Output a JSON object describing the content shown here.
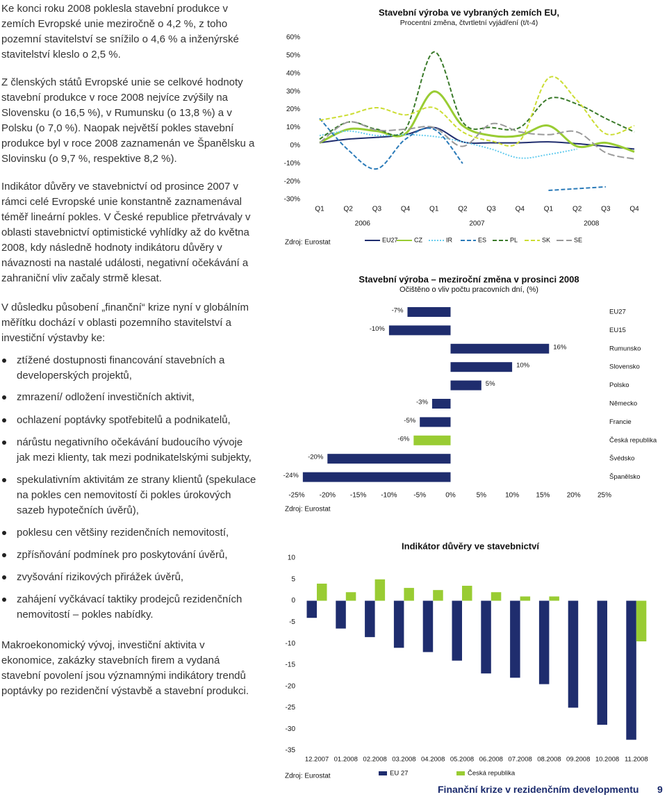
{
  "left_column": {
    "paragraphs_before": [
      "Ke konci roku 2008 poklesla stavební produkce v zemích Evropské unie meziročně o 4,2 %, z toho pozemní stavitelství se snížilo o 4,6 % a inženýrské stavitelství kleslo o 2,5 %.",
      "Z členských států Evropské unie se celkové hodnoty stavební produkce v roce 2008 nejvíce zvýšily na Slovensku (o 16,5 %), v Rumunsku (o 13,8 %) a v Polsku (o 7,0 %). Naopak největší pokles stavební produkce byl v roce 2008 zaznamenán ve Španělsku a Slovinsku (o 9,7 %, respektive 8,2 %).",
      "Indikátor důvěry ve stavebnictví od prosince 2007 v rámci celé Evropské unie konstantně zaznamenával téměř lineární pokles. V České republice přetrvávaly v oblasti stavebnictví optimistické vyhlídky až do května 2008, kdy následně hodnoty indikátoru důvěry v návaznosti na nastalé události, negativní očekávání a zahraniční vliv začaly strmě klesat.",
      "V důsledku působení „finanční“ krize nyní v globálním měřítku dochází v oblasti pozemního stavitelství a investiční výstavby ke:"
    ],
    "bullets": [
      "ztížené dostupnosti financování stavebních a developerských projektů,",
      "zmrazení/ odložení investičních aktivit,",
      "ochlazení poptávky spotřebitelů a podnikatelů,",
      "nárůstu negativního očekávání budoucího vývoje jak mezi klienty, tak mezi podnikatelskými subjekty,",
      "spekulativním aktivitám ze strany klientů (spekulace na pokles cen nemovitostí či pokles úrokových sazeb hypotečních úvěrů),",
      "poklesu cen většiny rezidenčních nemovitostí,",
      "zpřísňování podmínek pro poskytování úvěrů,",
      "zvyšování rizikových přirážek úvěrů,",
      "zahájení vyčkávací taktiky prodejců rezidenčních nemovitostí – pokles nabídky."
    ],
    "paragraphs_after": [
      "Makroekonomický vývoj, investiční aktivita v ekonomice, zakázky stavebních firem a vydaná stavební povolení jsou významnými indikátory trendů poptávky po rezidenční výstavbě a stavební produkci."
    ]
  },
  "chart_data": [
    {
      "type": "line",
      "title": "Stavební výroba ve vybraných zemích EU,",
      "subtitle": "Procentní změna, čtvrtletní vyjádření (t/t-4)",
      "source": "Zdroj: Eurostat",
      "categories": [
        "Q1",
        "Q2",
        "Q3",
        "Q4",
        "Q1",
        "Q2",
        "Q3",
        "Q4",
        "Q1",
        "Q2",
        "Q3",
        "Q4"
      ],
      "category_groups": [
        "2006",
        "2007",
        "2008"
      ],
      "ylim": [
        -30,
        60
      ],
      "yticks": [
        {
          "value": 60,
          "label": "60%"
        },
        {
          "value": 50,
          "label": "50%"
        },
        {
          "value": 40,
          "label": "40%"
        },
        {
          "value": 30,
          "label": "30%"
        },
        {
          "value": 20,
          "label": "20%"
        },
        {
          "value": 10,
          "label": "10%"
        },
        {
          "value": 0,
          "label": "0%"
        },
        {
          "value": -10,
          "label": "-10%"
        },
        {
          "value": -20,
          "label": "-20%"
        },
        {
          "value": -30,
          "label": "-30%"
        }
      ],
      "series": [
        {
          "name": "EU27",
          "color": "#1f2d6e",
          "dash": "solid",
          "values": [
            1.5,
            3.5,
            4.5,
            6,
            10,
            2,
            1.5,
            1.5,
            2,
            1,
            -0.5,
            -2
          ]
        },
        {
          "name": "CZ",
          "color": "#99cc33",
          "dash": "solid",
          "values": [
            1.5,
            9,
            8,
            6.5,
            30,
            11,
            5.5,
            5.5,
            11,
            -0.5,
            1.5,
            -3.5
          ]
        },
        {
          "name": "IR",
          "color": "#66ccee",
          "dash": "dotted",
          "values": [
            5.5,
            8,
            5.5,
            6,
            5,
            2,
            -2,
            -7,
            -5,
            -2,
            null,
            null
          ]
        },
        {
          "name": "ES",
          "color": "#2a7ab8",
          "dash": "dashed",
          "values": [
            15,
            -2.5,
            -13,
            3.5,
            9,
            -10,
            null,
            null,
            -25,
            -24,
            -23,
            null
          ]
        },
        {
          "name": "PL",
          "color": "#3a7a2a",
          "dash": "dashed",
          "values": [
            3.5,
            13,
            9,
            9,
            52,
            13,
            10,
            10,
            26,
            23,
            15,
            7.5
          ]
        },
        {
          "name": "SK",
          "color": "#ccdd33",
          "dash": "dashed",
          "values": [
            14,
            17,
            21,
            17,
            21,
            7.5,
            2.5,
            2.5,
            37.5,
            25,
            6.5,
            11
          ]
        },
        {
          "name": "SE",
          "color": "#999999",
          "dash": "longdash",
          "values": [
            1.5,
            13,
            8.5,
            9,
            10,
            -0.5,
            12,
            7.5,
            6,
            7.5,
            -4,
            -7.5
          ]
        }
      ]
    },
    {
      "type": "hbar",
      "title": "Stavební výroba – meziroční změna v prosinci 2008",
      "subtitle": "Očištěno o vliv počtu pracovních dní, (%)",
      "source": "Zdroj: Eurostat",
      "categories": [
        "EU27",
        "EU15",
        "Rumunsko",
        "Slovensko",
        "Polsko",
        "Německo",
        "Francie",
        "Česká republika",
        "Švédsko",
        "Španělsko"
      ],
      "values": [
        -7,
        -10,
        16,
        10,
        5,
        -3,
        -5,
        -6,
        -20,
        -24
      ],
      "value_labels": [
        "-7%",
        "-10%",
        "16%",
        "10%",
        "5%",
        "-3%",
        "-5%",
        "-6%",
        "-20%",
        "-24%"
      ],
      "colors": [
        "#1f2d6e",
        "#1f2d6e",
        "#1f2d6e",
        "#1f2d6e",
        "#1f2d6e",
        "#1f2d6e",
        "#1f2d6e",
        "#99cc33",
        "#1f2d6e",
        "#1f2d6e"
      ],
      "xlim": [
        -25,
        25
      ],
      "xticks": [
        {
          "value": -25,
          "label": "-25%"
        },
        {
          "value": -20,
          "label": "-20%"
        },
        {
          "value": -15,
          "label": "-15%"
        },
        {
          "value": -10,
          "label": "-10%"
        },
        {
          "value": -5,
          "label": "-5%"
        },
        {
          "value": 0,
          "label": "0%"
        },
        {
          "value": 5,
          "label": "5%"
        },
        {
          "value": 10,
          "label": "10%"
        },
        {
          "value": 15,
          "label": "15%"
        },
        {
          "value": 20,
          "label": "20%"
        },
        {
          "value": 25,
          "label": "25%"
        }
      ]
    },
    {
      "type": "bar",
      "title": "Indikátor důvěry ve stavebnictví",
      "source": "Zdroj: Eurostat",
      "categories": [
        "12.2007",
        "01.2008",
        "02.2008",
        "03.2008",
        "04.2008",
        "05.2008",
        "06.2008",
        "07.2008",
        "08.2008",
        "09.2008",
        "10.2008",
        "11.2008"
      ],
      "ylim": [
        -35,
        10
      ],
      "yticks": [
        10,
        5,
        0,
        -5,
        -10,
        -15,
        -20,
        -25,
        -30,
        -35
      ],
      "series": [
        {
          "name": "EU 27",
          "color": "#1f2d6e",
          "values": [
            -4,
            -6.5,
            -8.5,
            -11,
            -12,
            -14,
            -17,
            -18,
            -19.5,
            -25,
            -29,
            -32.5
          ]
        },
        {
          "name": "Česká republika",
          "color": "#99cc33",
          "values": [
            4,
            2,
            5,
            3,
            2.5,
            3.5,
            2,
            1,
            1,
            0,
            0,
            -9.5
          ]
        }
      ]
    }
  ],
  "footer": {
    "title": "Finanční krize v rezidenčním developmentu",
    "page": 9
  }
}
